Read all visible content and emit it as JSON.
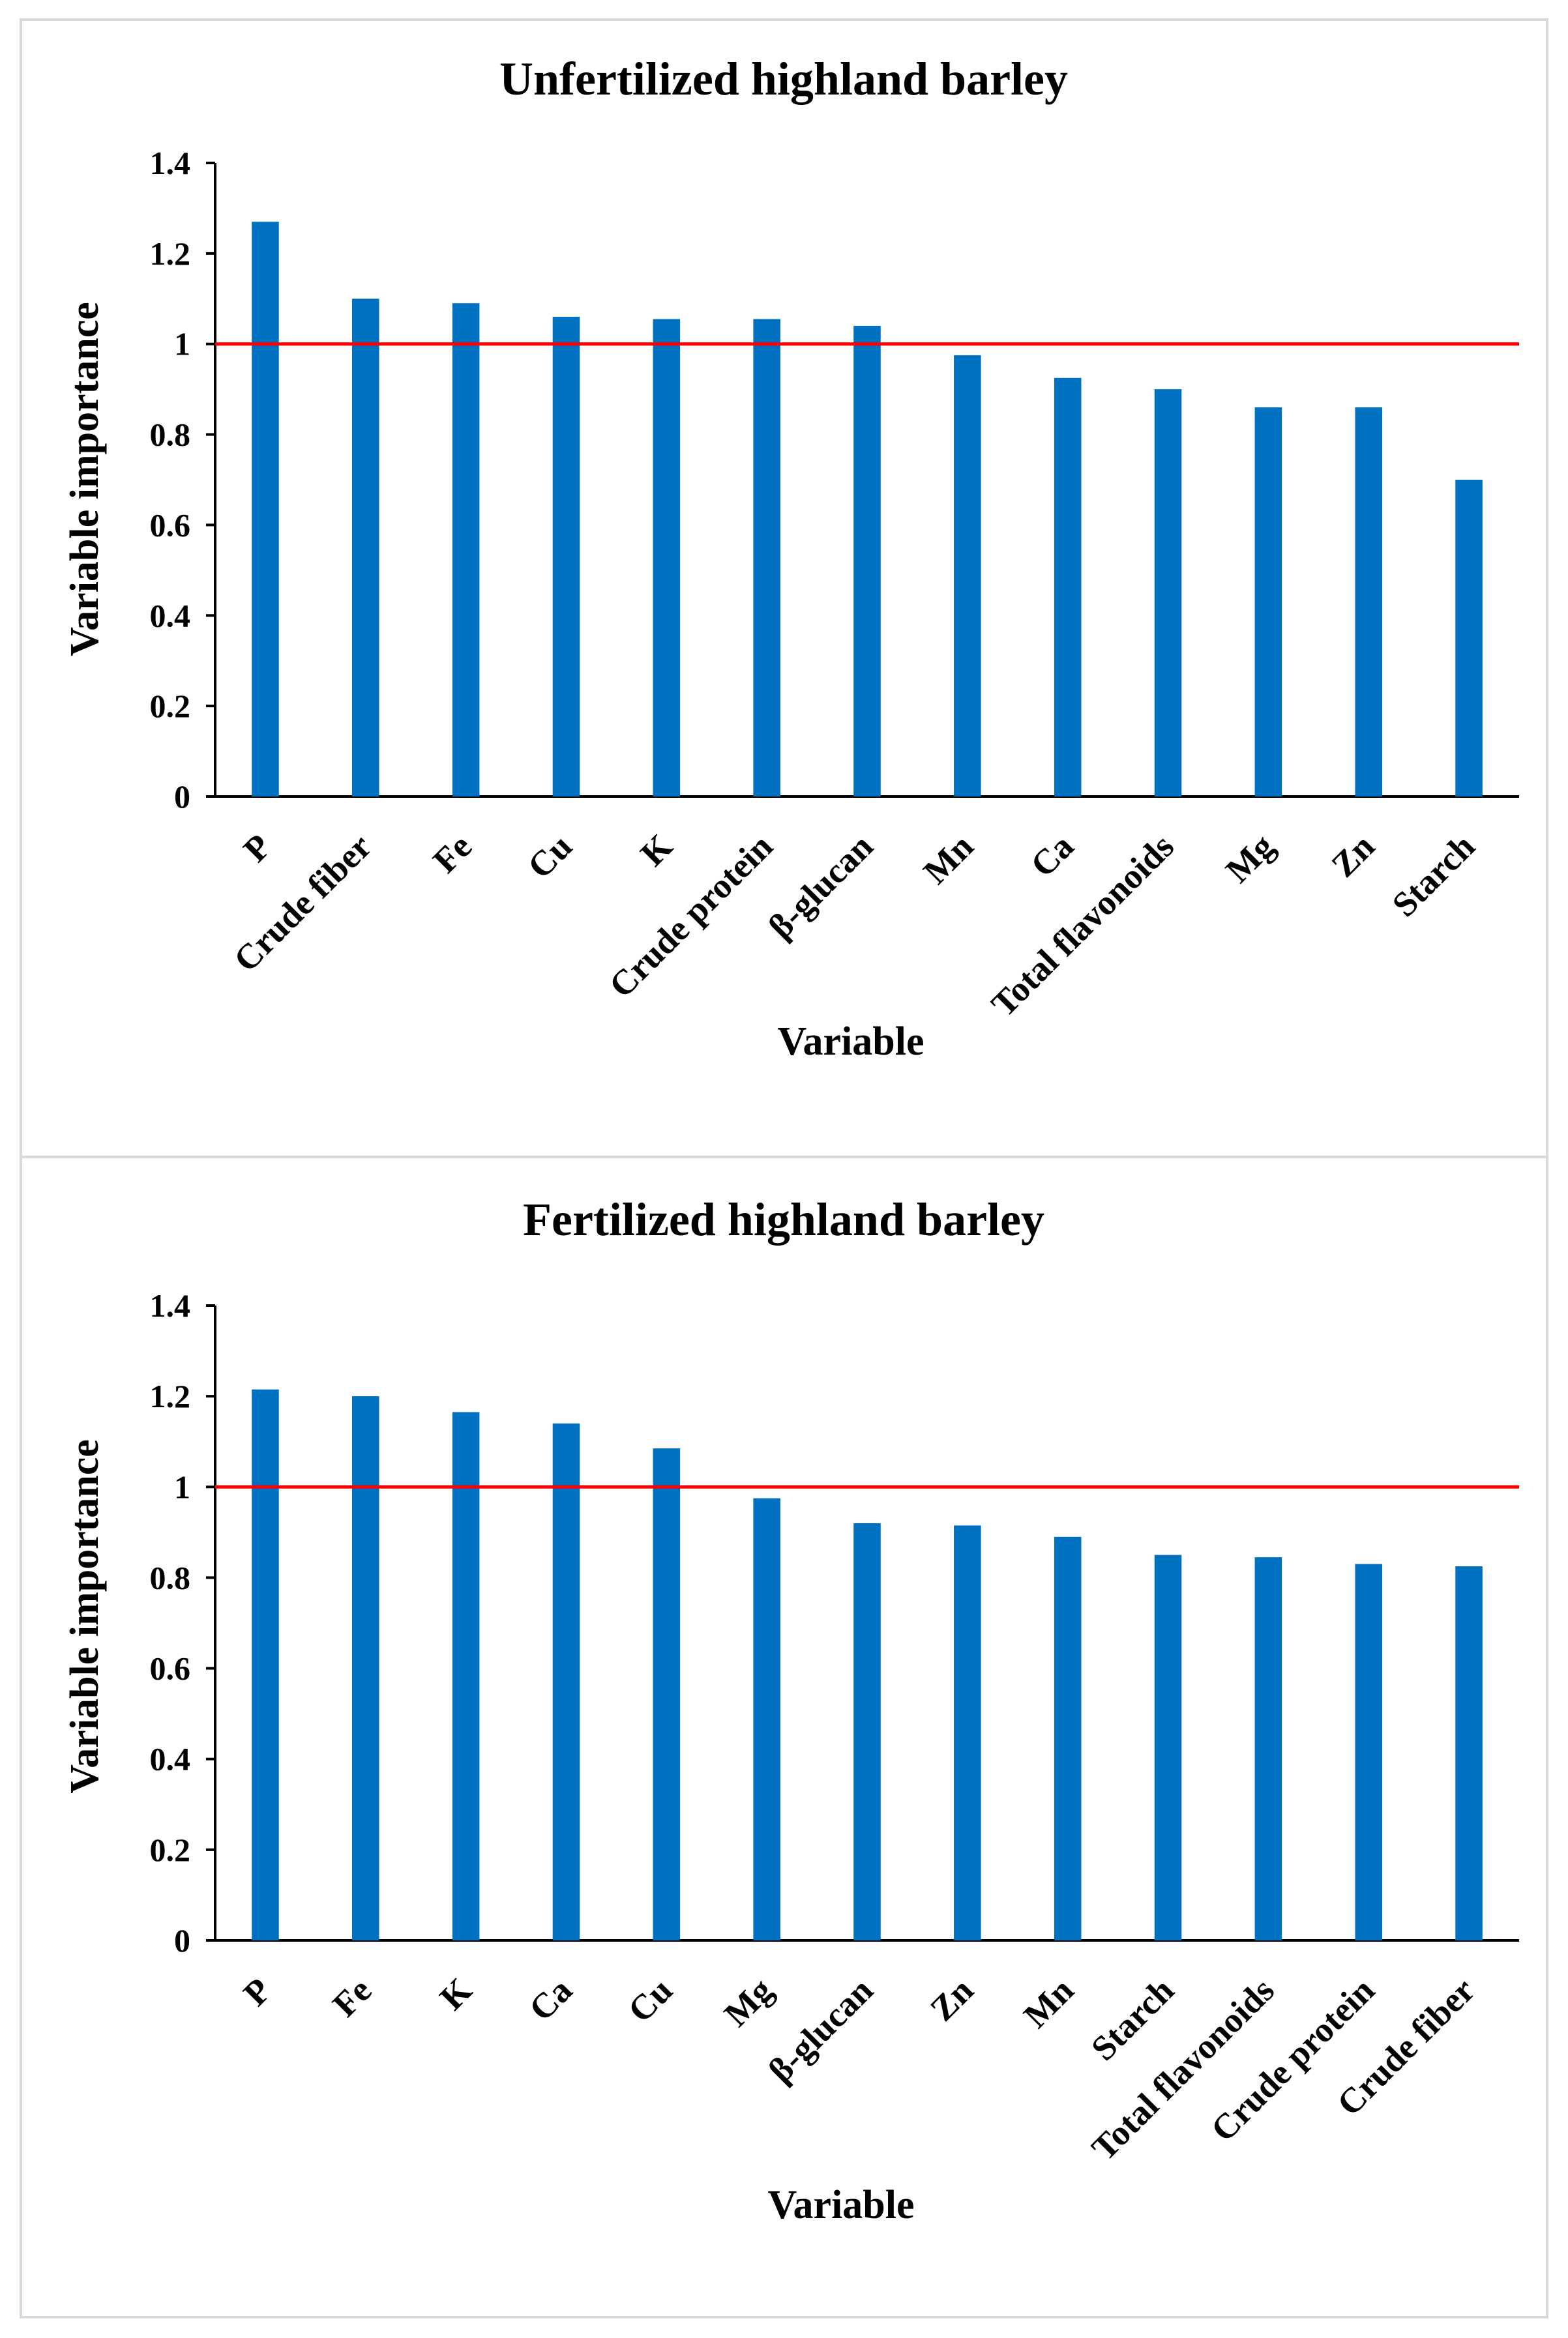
{
  "colors": {
    "bar": "#0070c0",
    "threshold": "#ff0000",
    "axis": "#000000",
    "border": "#d9d9d9"
  },
  "chart_data": [
    {
      "type": "bar",
      "title": "Unfertilized highland barley",
      "xlabel": "Variable",
      "ylabel": "Variable importance",
      "ylim": [
        0,
        1.4
      ],
      "yticks": [
        "0",
        "0.2",
        "0.4",
        "0.6",
        "0.8",
        "1",
        "1.2",
        "1.4"
      ],
      "threshold": 1,
      "grid": false,
      "categories": [
        "P",
        "Crude fiber",
        "Fe",
        "Cu",
        "K",
        "Crude protein",
        "β-glucan",
        "Mn",
        "Ca",
        "Total flavonoids",
        "Mg",
        "Zn",
        "Starch"
      ],
      "values": [
        1.27,
        1.1,
        1.09,
        1.06,
        1.055,
        1.055,
        1.04,
        0.975,
        0.925,
        0.9,
        0.86,
        0.86,
        0.7
      ]
    },
    {
      "type": "bar",
      "title": "Fertilized highland barley",
      "xlabel": "Variable",
      "ylabel": "Variable importance",
      "ylim": [
        0,
        1.4
      ],
      "yticks": [
        "0",
        "0.2",
        "0.4",
        "0.6",
        "0.8",
        "1",
        "1.2",
        "1.4"
      ],
      "threshold": 1,
      "grid": false,
      "categories": [
        "P",
        "Fe",
        "K",
        "Ca",
        "Cu",
        "Mg",
        "β-glucan",
        "Zn",
        "Mn",
        "Starch",
        "Total flavonoids",
        "Crude protein",
        "Crude fiber"
      ],
      "values": [
        1.215,
        1.2,
        1.165,
        1.14,
        1.085,
        0.975,
        0.92,
        0.915,
        0.89,
        0.85,
        0.845,
        0.83,
        0.825
      ]
    }
  ]
}
